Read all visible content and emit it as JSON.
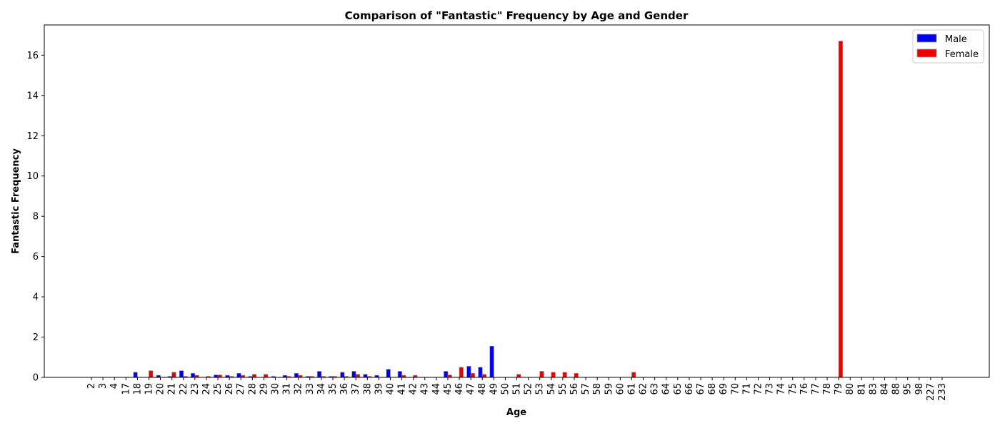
{
  "chart_data": {
    "type": "bar",
    "title": "Comparison of \"Fantastic\" Frequency by Age and Gender",
    "xlabel": "Age",
    "ylabel": "Fantastic Frequency",
    "ylim": [
      0,
      17.5
    ],
    "yticks": [
      0,
      2,
      4,
      6,
      8,
      10,
      12,
      14,
      16
    ],
    "grid": false,
    "legend_position": "top-right",
    "categories": [
      "2",
      "3",
      "4",
      "17",
      "18",
      "19",
      "20",
      "21",
      "22",
      "23",
      "24",
      "25",
      "26",
      "27",
      "28",
      "29",
      "30",
      "31",
      "32",
      "33",
      "34",
      "35",
      "36",
      "37",
      "38",
      "39",
      "40",
      "41",
      "42",
      "43",
      "44",
      "45",
      "46",
      "47",
      "48",
      "49",
      "50",
      "51",
      "52",
      "53",
      "54",
      "55",
      "56",
      "57",
      "58",
      "59",
      "60",
      "61",
      "62",
      "63",
      "64",
      "65",
      "66",
      "67",
      "68",
      "69",
      "70",
      "71",
      "72",
      "73",
      "74",
      "75",
      "76",
      "77",
      "78",
      "79",
      "80",
      "81",
      "83",
      "84",
      "88",
      "95",
      "98",
      "227",
      "233"
    ],
    "series": [
      {
        "name": "Male",
        "color": "#0000ee",
        "values": [
          0,
          0,
          0,
          0,
          0.25,
          0,
          0.1,
          0.05,
          0.33,
          0.2,
          0,
          0.12,
          0.1,
          0.2,
          0.05,
          0,
          0.05,
          0.1,
          0.2,
          0.05,
          0.3,
          0.05,
          0.25,
          0.3,
          0.15,
          0.1,
          0.4,
          0.3,
          0,
          0,
          0,
          0.3,
          0,
          0.55,
          0.5,
          1.55,
          0,
          0,
          0,
          0,
          0,
          0,
          0,
          0,
          0,
          0,
          0,
          0,
          0,
          0,
          0,
          0,
          0,
          0,
          0,
          0,
          0,
          0,
          0,
          0,
          0,
          0,
          0,
          0,
          0,
          0,
          0,
          0,
          0,
          0,
          0,
          0,
          0,
          0,
          0
        ]
      },
      {
        "name": "Female",
        "color": "#ee0000",
        "values": [
          0,
          0,
          0,
          0,
          0,
          0.33,
          0,
          0.25,
          0.05,
          0.1,
          0.05,
          0.12,
          0.05,
          0.1,
          0.15,
          0.15,
          0,
          0.05,
          0.1,
          0.05,
          0.05,
          0.05,
          0.05,
          0.15,
          0.05,
          0,
          0,
          0.1,
          0.1,
          0,
          0,
          0.12,
          0.5,
          0.2,
          0.15,
          0,
          0,
          0.15,
          0,
          0.3,
          0.25,
          0.25,
          0.2,
          0,
          0,
          0,
          0,
          0.25,
          0,
          0,
          0,
          0,
          0,
          0,
          0,
          0,
          0,
          0,
          0,
          0,
          0,
          0,
          0,
          0,
          0,
          16.7,
          0,
          0,
          0,
          0,
          0,
          0,
          0,
          0,
          0
        ]
      }
    ]
  }
}
